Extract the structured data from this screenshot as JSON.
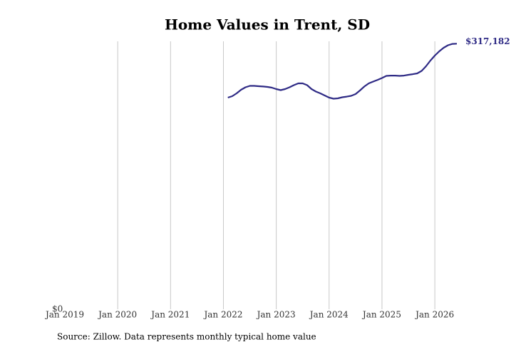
{
  "chart_data": {
    "type": "line",
    "title": "Home Values in Trent, SD",
    "source": "Source: Zillow. Data represents monthly typical home value",
    "x": [
      "2022-02",
      "2022-03",
      "2022-04",
      "2022-05",
      "2022-06",
      "2022-07",
      "2022-08",
      "2022-09",
      "2022-10",
      "2022-11",
      "2022-12",
      "2023-01",
      "2023-02",
      "2023-03",
      "2023-04",
      "2023-05",
      "2023-06",
      "2023-07",
      "2023-08",
      "2023-09",
      "2023-10",
      "2023-11",
      "2023-12",
      "2024-01",
      "2024-02",
      "2024-03",
      "2024-04",
      "2024-05",
      "2024-06",
      "2024-07",
      "2024-08",
      "2024-09",
      "2024-10",
      "2024-11",
      "2024-12",
      "2025-01",
      "2025-02",
      "2025-03",
      "2025-04",
      "2025-05",
      "2025-06",
      "2025-07",
      "2025-08",
      "2025-09",
      "2025-10",
      "2025-11",
      "2025-12",
      "2026-01",
      "2026-02",
      "2026-03",
      "2026-04",
      "2026-05",
      "2026-06"
    ],
    "series": [
      {
        "name": "Trent, SD",
        "color": "#2e2a85",
        "values": [
          252800,
          254500,
          257900,
          262100,
          265100,
          266800,
          266800,
          266400,
          266000,
          265500,
          264700,
          263000,
          261700,
          263000,
          265100,
          267700,
          269800,
          269800,
          267700,
          263000,
          260000,
          257900,
          255300,
          252800,
          251500,
          251900,
          253200,
          254000,
          254900,
          257000,
          261300,
          266000,
          269800,
          271900,
          274000,
          276200,
          278700,
          279100,
          279100,
          278700,
          279100,
          280000,
          280800,
          281700,
          284700,
          290200,
          297000,
          303000,
          308100,
          312300,
          315300,
          316900,
          317182
        ],
        "value_labels": [
          null,
          null,
          null,
          null,
          null,
          null,
          null,
          null,
          null,
          null,
          null,
          null,
          null,
          null,
          null,
          null,
          null,
          null,
          null,
          null,
          null,
          null,
          null,
          null,
          null,
          null,
          null,
          null,
          null,
          null,
          null,
          null,
          null,
          null,
          null,
          null,
          null,
          null,
          null,
          null,
          null,
          null,
          null,
          null,
          null,
          null,
          null,
          null,
          null,
          null,
          null,
          null,
          "$317,182"
        ]
      }
    ],
    "xlim": [
      "2019-01",
      "2026-06"
    ],
    "xticks": [
      {
        "value": "2019-01",
        "label": "Jan 2019"
      },
      {
        "value": "2020-01",
        "label": "Jan 2020"
      },
      {
        "value": "2021-01",
        "label": "Jan 2021"
      },
      {
        "value": "2022-01",
        "label": "Jan 2022"
      },
      {
        "value": "2023-01",
        "label": "Jan 2023"
      },
      {
        "value": "2024-01",
        "label": "Jan 2024"
      },
      {
        "value": "2025-01",
        "label": "Jan 2025"
      },
      {
        "value": "2026-01",
        "label": "Jan 2026"
      }
    ],
    "ylim": [
      0,
      320000
    ],
    "yticks": [
      {
        "value": 0,
        "label": "$0"
      }
    ],
    "grid": true
  }
}
